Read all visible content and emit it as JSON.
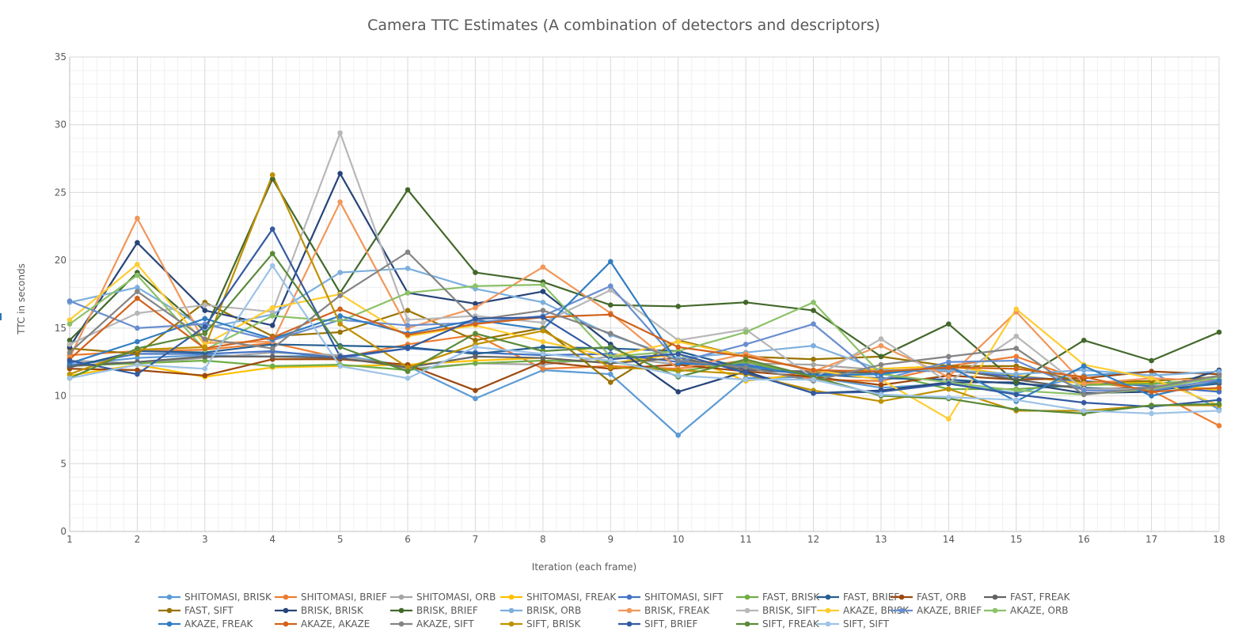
{
  "chart_data": {
    "type": "line",
    "title": "Camera TTC Estimates (A combination of detectors and descriptors)",
    "xlabel": "Iteration (each frame)",
    "ylabel": "TTC in seconds",
    "x": [
      1,
      2,
      3,
      4,
      5,
      6,
      7,
      8,
      9,
      10,
      11,
      12,
      13,
      14,
      15,
      16,
      17,
      18
    ],
    "ylim": [
      0,
      35
    ],
    "yticks": [
      0,
      5,
      10,
      15,
      20,
      25,
      30,
      35
    ],
    "grid": true,
    "legend_position": "bottom",
    "series": [
      {
        "name": "SHITOMASI, BRISK",
        "color": "#5B9BD5",
        "values": [
          12.3,
          12.8,
          13.0,
          12.9,
          13.0,
          12.2,
          9.8,
          11.9,
          11.6,
          7.1,
          11.3,
          11.4,
          10.6,
          10.9,
          10.2,
          11.5,
          11.8,
          9.0
        ]
      },
      {
        "name": "SHITOMASI, BRIEF",
        "color": "#ED7D31",
        "values": [
          13.0,
          13.3,
          13.4,
          13.9,
          12.8,
          13.8,
          14.5,
          12.0,
          12.2,
          12.0,
          12.6,
          11.2,
          11.1,
          12.2,
          12.9,
          11.1,
          10.4,
          7.8
        ]
      },
      {
        "name": "SHITOMASI, ORB",
        "color": "#A5A5A5",
        "values": [
          12.6,
          12.4,
          12.8,
          13.2,
          13.0,
          12.0,
          12.4,
          12.3,
          12.9,
          12.3,
          12.4,
          12.3,
          11.9,
          11.8,
          11.5,
          11.0,
          10.8,
          10.5
        ]
      },
      {
        "name": "SHITOMASI, FREAK",
        "color": "#FFC000",
        "values": [
          11.5,
          12.3,
          11.4,
          12.1,
          12.2,
          12.3,
          12.6,
          12.8,
          12.4,
          13.1,
          11.1,
          11.7,
          12.0,
          12.2,
          11.5,
          10.9,
          11.0,
          10.4
        ]
      },
      {
        "name": "SHITOMASI, SIFT",
        "color": "#4472C4",
        "values": [
          12.2,
          13.1,
          13.1,
          13.3,
          12.8,
          13.5,
          13.2,
          13.0,
          13.1,
          12.5,
          12.3,
          11.6,
          11.8,
          11.9,
          11.4,
          11.1,
          10.7,
          10.3
        ]
      },
      {
        "name": "FAST, BRISK",
        "color": "#70AD47",
        "values": [
          12.2,
          12.4,
          12.6,
          12.2,
          12.3,
          11.9,
          12.4,
          12.6,
          12.5,
          11.8,
          12.5,
          11.4,
          11.7,
          10.5,
          10.5,
          10.8,
          10.9,
          11.2
        ]
      },
      {
        "name": "FAST, BRIEF",
        "color": "#255E91",
        "values": [
          12.1,
          13.3,
          13.2,
          13.8,
          13.7,
          13.6,
          13.1,
          13.6,
          13.5,
          13.3,
          12.0,
          11.6,
          11.3,
          11.2,
          10.9,
          10.6,
          10.4,
          10.9
        ]
      },
      {
        "name": "FAST, ORB",
        "color": "#9E480E",
        "values": [
          12.0,
          11.9,
          11.5,
          12.7,
          12.7,
          12.3,
          10.4,
          12.5,
          12.0,
          12.3,
          11.8,
          11.4,
          10.8,
          11.5,
          11.2,
          11.3,
          11.8,
          11.6
        ]
      },
      {
        "name": "FAST, FREAK",
        "color": "#636363",
        "values": [
          12.2,
          12.5,
          12.9,
          12.9,
          12.8,
          12.1,
          12.9,
          12.8,
          12.4,
          12.8,
          11.9,
          11.8,
          11.7,
          12.0,
          11.2,
          10.5,
          10.6,
          11.0
        ]
      },
      {
        "name": "FAST, SIFT",
        "color": "#997300",
        "values": [
          13.5,
          13.1,
          16.9,
          14.4,
          14.7,
          16.3,
          14.1,
          15.0,
          11.0,
          14.1,
          12.9,
          12.7,
          12.9,
          12.2,
          12.2,
          11.0,
          11.1,
          11.4
        ]
      },
      {
        "name": "BRISK, BRISK",
        "color": "#264478",
        "values": [
          13.6,
          21.3,
          16.3,
          15.2,
          26.4,
          17.6,
          16.8,
          17.7,
          13.8,
          10.3,
          11.8,
          10.2,
          10.4,
          11.0,
          11.0,
          10.2,
          10.3,
          11.9
        ]
      },
      {
        "name": "BRISK, BRIEF",
        "color": "#43682B",
        "values": [
          14.1,
          19.1,
          14.8,
          26.0,
          17.6,
          25.2,
          19.1,
          18.4,
          16.7,
          16.6,
          16.9,
          16.3,
          12.9,
          15.3,
          11.0,
          14.1,
          12.6,
          14.7
        ]
      },
      {
        "name": "BRISK, ORB",
        "color": "#7CAFDD",
        "values": [
          16.9,
          18.0,
          15.0,
          16.0,
          19.1,
          19.4,
          17.9,
          16.9,
          14.5,
          12.8,
          13.2,
          13.7,
          11.9,
          11.9,
          11.6,
          11.9,
          11.5,
          11.8
        ]
      },
      {
        "name": "BRISK, FREAK",
        "color": "#F1975A",
        "values": [
          12.8,
          23.1,
          13.9,
          14.0,
          24.3,
          15.0,
          16.5,
          19.5,
          16.1,
          12.0,
          13.1,
          11.8,
          13.7,
          11.4,
          16.2,
          10.9,
          11.3,
          11.1
        ]
      },
      {
        "name": "BRISK, SIFT",
        "color": "#B7B7B7",
        "values": [
          13.8,
          16.1,
          16.7,
          16.2,
          29.4,
          15.6,
          15.9,
          15.4,
          17.8,
          14.1,
          14.9,
          11.3,
          14.2,
          11.0,
          14.4,
          10.5,
          10.5,
          11.1
        ]
      },
      {
        "name": "AKAZE, BRISK",
        "color": "#FFCD33",
        "values": [
          15.6,
          19.7,
          13.8,
          16.5,
          17.5,
          14.4,
          15.2,
          14.0,
          12.9,
          14.0,
          12.9,
          11.9,
          11.2,
          8.3,
          16.4,
          12.3,
          11.3,
          9.3
        ]
      },
      {
        "name": "AKAZE, BRIEF",
        "color": "#698ED0",
        "values": [
          17.0,
          15.0,
          15.3,
          14.1,
          15.6,
          15.2,
          15.4,
          15.9,
          18.1,
          12.5,
          13.8,
          15.3,
          11.2,
          12.5,
          12.6,
          10.4,
          10.4,
          11.2
        ]
      },
      {
        "name": "AKAZE, ORB",
        "color": "#8CC168",
        "values": [
          15.3,
          18.9,
          13.4,
          15.9,
          15.5,
          17.6,
          18.1,
          18.2,
          12.9,
          13.3,
          14.7,
          16.9,
          11.6,
          11.0,
          10.4,
          10.1,
          10.5,
          11.4
        ]
      },
      {
        "name": "AKAZE, FREAK",
        "color": "#327DC2",
        "values": [
          12.4,
          14.0,
          15.7,
          14.2,
          15.9,
          14.6,
          15.6,
          14.9,
          19.9,
          12.4,
          12.2,
          11.5,
          11.6,
          12.2,
          9.6,
          12.2,
          10.0,
          11.1
        ]
      },
      {
        "name": "AKAZE, AKAZE",
        "color": "#D1621B",
        "values": [
          12.7,
          17.2,
          13.5,
          14.3,
          16.4,
          14.5,
          15.3,
          15.8,
          16.0,
          13.6,
          12.9,
          11.9,
          11.8,
          12.1,
          12.0,
          11.4,
          10.3,
          10.6
        ]
      },
      {
        "name": "AKAZE, SIFT",
        "color": "#848484",
        "values": [
          13.2,
          17.7,
          14.2,
          13.5,
          17.4,
          20.6,
          15.6,
          16.3,
          14.6,
          12.6,
          12.1,
          11.1,
          12.3,
          12.9,
          13.5,
          10.1,
          10.6,
          11.5
        ]
      },
      {
        "name": "SIFT, BRISK",
        "color": "#C09100",
        "values": [
          11.6,
          13.4,
          13.6,
          26.3,
          15.3,
          12.1,
          13.8,
          14.8,
          12.1,
          11.9,
          11.6,
          10.4,
          9.6,
          10.5,
          8.9,
          8.9,
          9.3,
          9.3
        ]
      },
      {
        "name": "SIFT, BRIEF",
        "color": "#335AA1",
        "values": [
          12.6,
          11.6,
          15.1,
          22.3,
          12.9,
          13.5,
          15.7,
          15.8,
          12.7,
          13.1,
          11.7,
          10.2,
          10.3,
          10.9,
          10.1,
          9.5,
          9.2,
          9.7
        ]
      },
      {
        "name": "SIFT, FREAK",
        "color": "#5A8A39",
        "values": [
          11.3,
          13.5,
          14.6,
          20.5,
          13.6,
          11.8,
          14.6,
          13.3,
          13.6,
          11.4,
          12.7,
          11.4,
          10.0,
          9.8,
          9.0,
          8.7,
          9.3,
          9.4
        ]
      },
      {
        "name": "SIFT, SIFT",
        "color": "#9DC3E6",
        "values": [
          11.3,
          12.3,
          12.0,
          19.6,
          12.2,
          11.3,
          13.6,
          13.1,
          12.6,
          11.5,
          11.2,
          11.2,
          10.1,
          9.9,
          9.7,
          8.9,
          8.7,
          8.9
        ]
      }
    ]
  }
}
